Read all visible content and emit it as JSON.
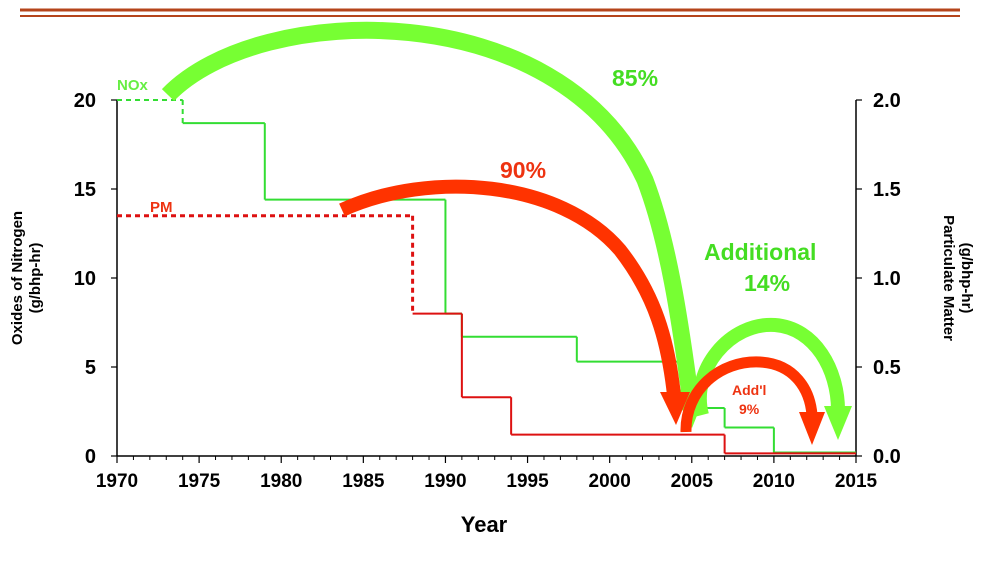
{
  "colors": {
    "nox": "#33dd33",
    "pm": "#dd1111",
    "nox_arrow": "#77ff33",
    "pm_arrow": "#ff3300",
    "header_rule": "#b5451b",
    "axis": "#000000"
  },
  "chart_data": {
    "type": "line",
    "title": "",
    "xlabel": "Year",
    "ylabel_left": "Oxides of Nitrogen\n(g/bhp-hr)",
    "ylabel_right": "Particulate Matter\n(g/bhp-hr)",
    "xlim": [
      1970,
      2015
    ],
    "ylim_left": [
      0,
      20
    ],
    "ylim_right": [
      0,
      2.0
    ],
    "x_ticks": [
      "1970",
      "1975",
      "1980",
      "1985",
      "1990",
      "1995",
      "2000",
      "2005",
      "2010",
      "2015"
    ],
    "y_left_ticks": [
      "0",
      "5",
      "10",
      "15",
      "20"
    ],
    "y_right_ticks": [
      "0.0",
      "0.5",
      "1.0",
      "1.5",
      "2.0"
    ],
    "grid": false,
    "series": [
      {
        "name": "NOx",
        "axis": "left",
        "shape": "step",
        "points": [
          [
            1970,
            20.0
          ],
          [
            1974,
            20.0
          ],
          [
            1974,
            18.7
          ],
          [
            1979,
            18.7
          ],
          [
            1979,
            14.4
          ],
          [
            1990,
            14.4
          ],
          [
            1990,
            8.0
          ],
          [
            1991,
            8.0
          ],
          [
            1991,
            6.7
          ],
          [
            1998,
            6.7
          ],
          [
            1998,
            5.3
          ],
          [
            2005,
            5.3
          ],
          [
            2005,
            2.7
          ],
          [
            2007,
            2.7
          ],
          [
            2007,
            1.6
          ],
          [
            2010,
            1.6
          ],
          [
            2010,
            0.2
          ],
          [
            2015,
            0.2
          ]
        ],
        "dashed_until": 1974
      },
      {
        "name": "PM",
        "axis": "right",
        "shape": "step",
        "points": [
          [
            1970,
            1.35
          ],
          [
            1988,
            1.35
          ],
          [
            1988,
            0.8
          ],
          [
            1991,
            0.8
          ],
          [
            1991,
            0.33
          ],
          [
            1994,
            0.33
          ],
          [
            1994,
            0.12
          ],
          [
            2004.5,
            0.12
          ],
          [
            2004.5,
            0.12
          ],
          [
            2007,
            0.12
          ],
          [
            2007,
            0.015
          ],
          [
            2015,
            0.015
          ]
        ],
        "dashed_until": 1988
      }
    ],
    "annotations": [
      {
        "id": "nox-85",
        "text": "85%"
      },
      {
        "id": "pm-90",
        "text": "90%"
      },
      {
        "id": "nox-additional",
        "text": "Additional 14%"
      },
      {
        "id": "pm-addl",
        "text": "Add'l 9%"
      }
    ]
  },
  "labels": {
    "nox": "NOx",
    "pm": "PM",
    "pct_85": "85%",
    "pct_90": "90%",
    "additional": "Additional",
    "additional_pct": "14%",
    "addl": "Add'l",
    "addl_pct": "9%",
    "x_axis": "Year",
    "left_axis_line1": "Oxides of Nitrogen",
    "left_axis_line2": "(g/bhp-hr)",
    "right_axis_line1": "Particulate Matter",
    "right_axis_line2": "(g/bhp-hr)"
  }
}
